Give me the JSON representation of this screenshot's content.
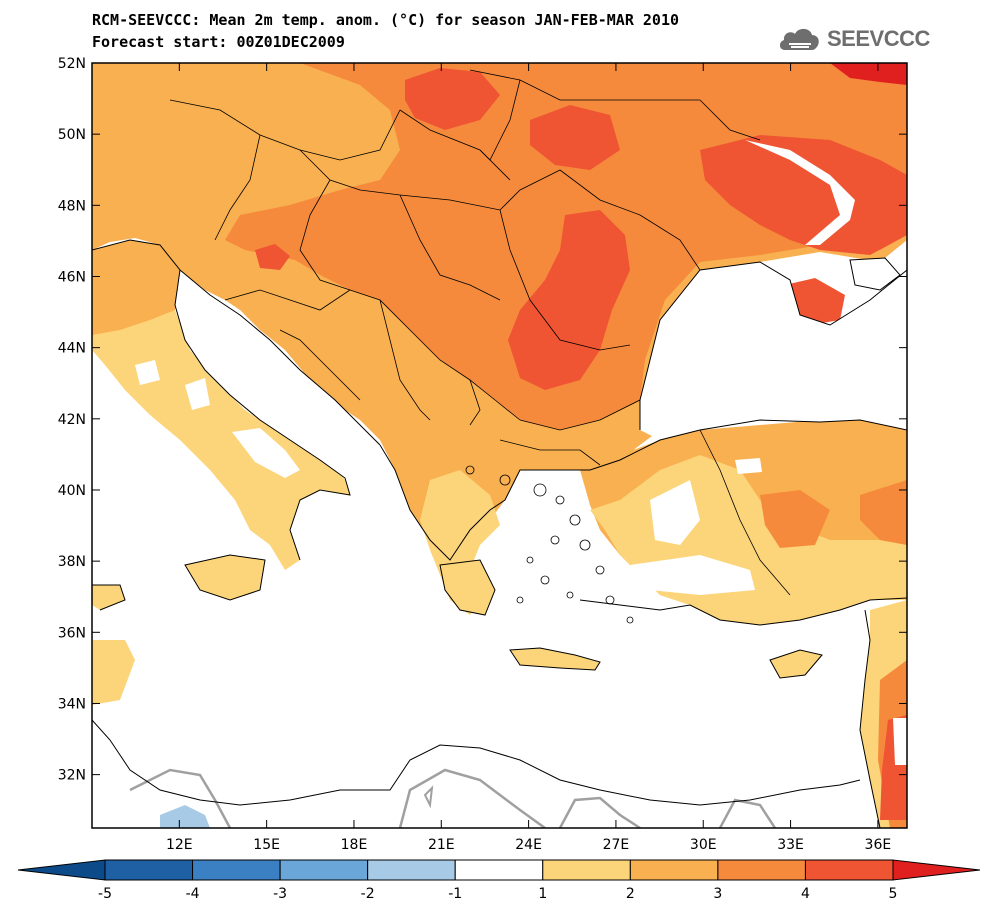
{
  "title": {
    "line1": "RCM-SEEVCCC: Mean 2m temp. anom. (°C) for season JAN-FEB-MAR 2010",
    "line2": "Forecast start: 00Z01DEC2009"
  },
  "logo": {
    "text": "SEEVCCC",
    "icon": "cloud-icon"
  },
  "map": {
    "lon_range": [
      9,
      37
    ],
    "lat_range": [
      30.5,
      52
    ],
    "lon_ticks": [
      "12E",
      "15E",
      "18E",
      "21E",
      "24E",
      "27E",
      "30E",
      "33E",
      "36E"
    ],
    "lat_ticks": [
      "32N",
      "34N",
      "36N",
      "38N",
      "40N",
      "42N",
      "44N",
      "46N",
      "48N",
      "50N",
      "52N"
    ]
  },
  "colorbar": {
    "labels": [
      "-5",
      "-4",
      "-3",
      "-2",
      "-1",
      "1",
      "2",
      "3",
      "4",
      "5"
    ],
    "colors": {
      "below_-5": "#0d4a8a",
      "-5_-4": "#1f5fa3",
      "-4_-3": "#3a80c2",
      "-3_-2": "#6aa6d8",
      "-2_-1": "#a7cbe6",
      "-1_1": "#ffffff",
      "1_2": "#fcd57a",
      "2_3": "#f9b050",
      "3_4": "#f58a3c",
      "4_5": "#ef5433",
      "above_5": "#e0201f"
    }
  },
  "legend_colors": {
    "sea": "#ffffff",
    "coast": "#000000",
    "zero_contour": "#a0a0a0"
  }
}
